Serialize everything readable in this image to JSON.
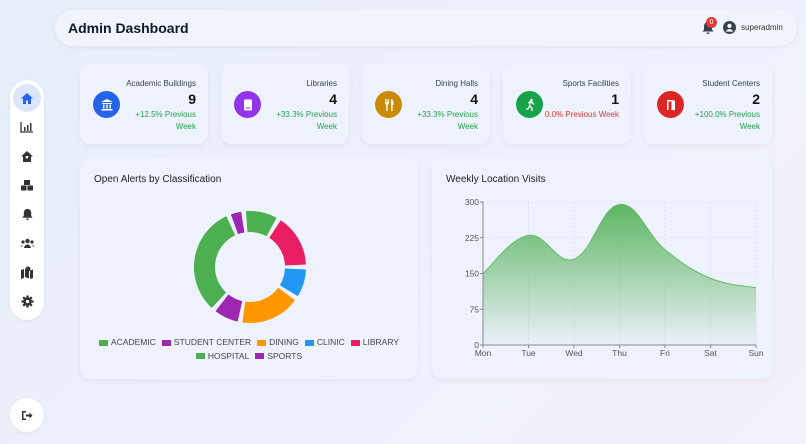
{
  "header": {
    "title": "Admin Dashboard",
    "notifications": "0",
    "username": "superadmin"
  },
  "sidebar": {
    "items": [
      {
        "icon": "home-icon",
        "active": true
      },
      {
        "icon": "bar-chart-icon"
      },
      {
        "icon": "building-icon"
      },
      {
        "icon": "boxes-icon"
      },
      {
        "icon": "bell-icon"
      },
      {
        "icon": "users-icon"
      },
      {
        "icon": "map-icon"
      },
      {
        "icon": "gear-icon"
      }
    ],
    "logout_icon": "logout-icon"
  },
  "cards": [
    {
      "label": "Academic Buildings",
      "value": "9",
      "change": "+12.5% Previous Week",
      "color": "#2563eb",
      "icon": "bank-icon",
      "trend": "positive"
    },
    {
      "label": "Libraries",
      "value": "4",
      "change": "+33.3% Previous Week",
      "color": "#9333ea",
      "icon": "book-icon",
      "trend": "positive"
    },
    {
      "label": "Dining Halls",
      "value": "4",
      "change": "+33.3% Previous Week",
      "color": "#ca8a04",
      "icon": "utensils-icon",
      "trend": "positive"
    },
    {
      "label": "Sports Facilities",
      "value": "1",
      "change": "0.0% Previous Week",
      "color": "#16a34a",
      "icon": "running-icon",
      "trend": "negative"
    },
    {
      "label": "Student Centers",
      "value": "2",
      "change": "+100.0% Previous Week",
      "color": "#dc2626",
      "icon": "door-icon",
      "trend": "positive"
    }
  ],
  "chart_data": [
    {
      "type": "pie",
      "title": "Open Alerts by Classification",
      "donut": true,
      "legend": "bottom",
      "categories": [
        "ACADEMIC",
        "STUDENT CENTER",
        "DINING",
        "CLINIC",
        "LIBRARY",
        "HOSPITAL",
        "SPORTS"
      ],
      "values": [
        31,
        7,
        17,
        8,
        15,
        9,
        3
      ],
      "colors": [
        "#4caf50",
        "#9c27b0",
        "#ff9800",
        "#2196f3",
        "#e91e63",
        "#4caf50",
        "#9c27b0"
      ]
    },
    {
      "type": "area",
      "title": "Weekly Location Visits",
      "categories": [
        "Mon",
        "Tue",
        "Wed",
        "Thu",
        "Fri",
        "Sat",
        "Sun"
      ],
      "values": [
        150,
        230,
        180,
        295,
        200,
        140,
        120
      ],
      "ylim": [
        0,
        300
      ],
      "yticks": [
        0,
        75,
        150,
        225,
        300
      ],
      "color": "#4caf50",
      "grid": true,
      "smooth": true
    }
  ]
}
